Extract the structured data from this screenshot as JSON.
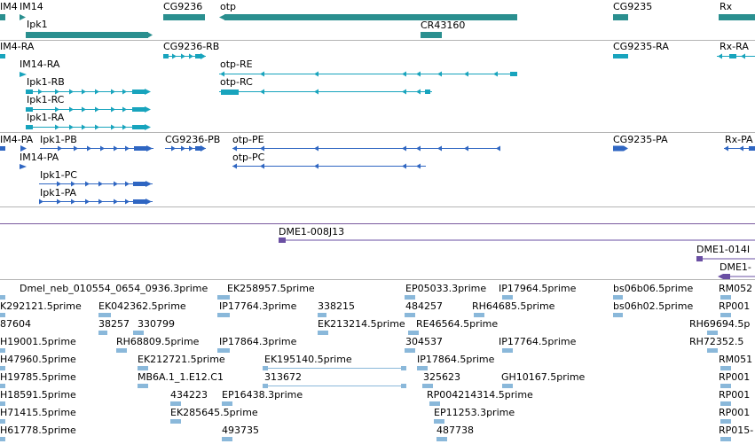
{
  "colors": {
    "gene": "#2a8f8f",
    "mrna": "#18a4bd",
    "cds": "#2f66c2",
    "clone": "#6a4fa3",
    "est": "#8ab8da",
    "separator": "#b4b4b4"
  },
  "tracks": {
    "genes": [
      {
        "name": "IM4"
      },
      {
        "name": "IM14"
      },
      {
        "name": "Ipk1"
      },
      {
        "name": "CG9236"
      },
      {
        "name": "otp"
      },
      {
        "name": "CR43160"
      },
      {
        "name": "CG9235"
      },
      {
        "name": "Rx"
      }
    ],
    "transcripts": [
      {
        "name": "IM4-RA"
      },
      {
        "name": "IM14-RA"
      },
      {
        "name": "Ipk1-RB"
      },
      {
        "name": "Ipk1-RC"
      },
      {
        "name": "Ipk1-RA"
      },
      {
        "name": "CG9236-RB"
      },
      {
        "name": "otp-RE"
      },
      {
        "name": "otp-RC"
      },
      {
        "name": "CG9235-RA"
      },
      {
        "name": "Rx-RA"
      }
    ],
    "proteins": [
      {
        "name": "IM4-PA"
      },
      {
        "name": "Ipk1-PB"
      },
      {
        "name": "IM14-PA"
      },
      {
        "name": "Ipk1-PC"
      },
      {
        "name": "Ipk1-PA"
      },
      {
        "name": "CG9236-PB"
      },
      {
        "name": "otp-PE"
      },
      {
        "name": "otp-PC"
      },
      {
        "name": "CG9235-PA"
      },
      {
        "name": "Rx-PA"
      }
    ],
    "clones": [
      {
        "name": "DME1-008J13"
      },
      {
        "name": "DME1-014I"
      },
      {
        "name": "DME1-"
      }
    ],
    "ests": [
      {
        "name": "Dmel_neb_010554_0654_0936.3prime"
      },
      {
        "name": "EK258957.5prime"
      },
      {
        "name": "EP05033.3prime"
      },
      {
        "name": "IP17964.5prime"
      },
      {
        "name": "bs06b06.5prime"
      },
      {
        "name": "RM052"
      },
      {
        "name": "K292121.5prime"
      },
      {
        "name": "EK042362.5prime"
      },
      {
        "name": "IP17764.3prime"
      },
      {
        "name": "338215"
      },
      {
        "name": "484257"
      },
      {
        "name": "RH64685.5prime"
      },
      {
        "name": "bs06h02.5prime"
      },
      {
        "name": "RP001"
      },
      {
        "name": "87604"
      },
      {
        "name": "38257"
      },
      {
        "name": "330799"
      },
      {
        "name": "EK213214.5prime"
      },
      {
        "name": "RE46564.5prime"
      },
      {
        "name": "RH69694.5p"
      },
      {
        "name": "H19001.5prime"
      },
      {
        "name": "RH68809.5prime"
      },
      {
        "name": "IP17864.3prime"
      },
      {
        "name": "304537"
      },
      {
        "name": "IP17764.5prime"
      },
      {
        "name": "RH72352.5"
      },
      {
        "name": "H47960.5prime"
      },
      {
        "name": "EK212721.5prime"
      },
      {
        "name": "EK195140.5prime"
      },
      {
        "name": "IP17864.5prime"
      },
      {
        "name": "RM051"
      },
      {
        "name": "H19785.5prime"
      },
      {
        "name": "MB6A.1_1.E12.C1"
      },
      {
        "name": "313672"
      },
      {
        "name": "325623"
      },
      {
        "name": "GH10167.5prime"
      },
      {
        "name": "RP001"
      },
      {
        "name": "H18591.5prime"
      },
      {
        "name": "434223"
      },
      {
        "name": "EP16438.3prime"
      },
      {
        "name": "RP004214314.5prime"
      },
      {
        "name": "RP001"
      },
      {
        "name": "H71415.5prime"
      },
      {
        "name": "EK285645.5prime"
      },
      {
        "name": "EP11253.3prime"
      },
      {
        "name": "RP001"
      },
      {
        "name": "H61778.5prime"
      },
      {
        "name": "493735"
      },
      {
        "name": "487738"
      },
      {
        "name": "RP015-"
      }
    ]
  }
}
